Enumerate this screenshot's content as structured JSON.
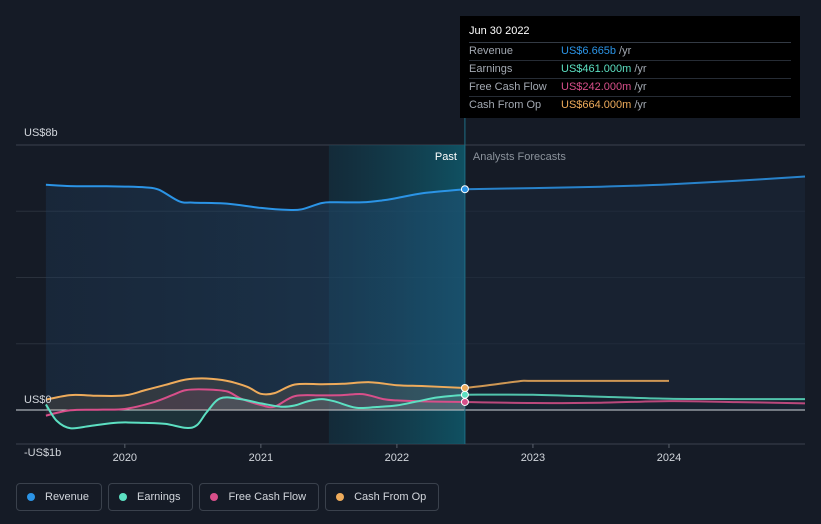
{
  "chart_data": {
    "type": "line",
    "title": "",
    "xlabel": "",
    "ylabel": "",
    "ylim": [
      -1000,
      8000
    ],
    "y_tick_labels": [
      "US$8b",
      "US$0",
      "-US$1b"
    ],
    "x_tick_labels": [
      "2020",
      "2021",
      "2022",
      "2023",
      "2024"
    ],
    "x_range": [
      2019.2,
      2025.0
    ],
    "region_labels": {
      "past": "Past",
      "forecast": "Analysts Forecasts"
    },
    "past_end": 2022.5,
    "highlight_start": 2021.5,
    "grid": true,
    "legend_position": "bottom",
    "series": [
      {
        "name": "Revenue",
        "color": "#2b94e6",
        "points": [
          [
            2019.42,
            6800
          ],
          [
            2019.6,
            6760
          ],
          [
            2019.8,
            6755
          ],
          [
            2020.0,
            6745
          ],
          [
            2020.15,
            6720
          ],
          [
            2020.25,
            6650
          ],
          [
            2020.4,
            6300
          ],
          [
            2020.5,
            6260
          ],
          [
            2020.75,
            6230
          ],
          [
            2021.0,
            6100
          ],
          [
            2021.2,
            6040
          ],
          [
            2021.3,
            6060
          ],
          [
            2021.45,
            6250
          ],
          [
            2021.55,
            6270
          ],
          [
            2021.75,
            6270
          ],
          [
            2021.9,
            6330
          ],
          [
            2022.0,
            6400
          ],
          [
            2022.2,
            6550
          ],
          [
            2022.5,
            6665
          ],
          [
            2023.0,
            6700
          ],
          [
            2023.5,
            6740
          ],
          [
            2024.0,
            6810
          ],
          [
            2024.5,
            6920
          ],
          [
            2025.0,
            7050
          ]
        ]
      },
      {
        "name": "Earnings",
        "color": "#5ce0c2",
        "points": [
          [
            2019.42,
            170
          ],
          [
            2019.5,
            -330
          ],
          [
            2019.6,
            -550
          ],
          [
            2019.75,
            -480
          ],
          [
            2019.95,
            -380
          ],
          [
            2020.15,
            -390
          ],
          [
            2020.3,
            -420
          ],
          [
            2020.45,
            -540
          ],
          [
            2020.53,
            -460
          ],
          [
            2020.6,
            -80
          ],
          [
            2020.7,
            350
          ],
          [
            2020.85,
            330
          ],
          [
            2021.0,
            200
          ],
          [
            2021.15,
            100
          ],
          [
            2021.25,
            140
          ],
          [
            2021.35,
            270
          ],
          [
            2021.45,
            330
          ],
          [
            2021.55,
            250
          ],
          [
            2021.7,
            70
          ],
          [
            2021.85,
            90
          ],
          [
            2022.0,
            140
          ],
          [
            2022.15,
            260
          ],
          [
            2022.3,
            380
          ],
          [
            2022.5,
            461
          ],
          [
            2023.0,
            461
          ],
          [
            2023.5,
            400
          ],
          [
            2024.0,
            340
          ],
          [
            2024.5,
            330
          ],
          [
            2025.0,
            330
          ]
        ]
      },
      {
        "name": "Free Cash Flow",
        "color": "#d84f8a",
        "points": [
          [
            2019.42,
            -170
          ],
          [
            2019.6,
            -10
          ],
          [
            2019.8,
            10
          ],
          [
            2020.0,
            30
          ],
          [
            2020.2,
            220
          ],
          [
            2020.35,
            450
          ],
          [
            2020.45,
            600
          ],
          [
            2020.6,
            620
          ],
          [
            2020.75,
            560
          ],
          [
            2020.85,
            350
          ],
          [
            2021.0,
            150
          ],
          [
            2021.1,
            100
          ],
          [
            2021.25,
            420
          ],
          [
            2021.45,
            440
          ],
          [
            2021.6,
            450
          ],
          [
            2021.75,
            480
          ],
          [
            2021.9,
            330
          ],
          [
            2022.0,
            290
          ],
          [
            2022.2,
            260
          ],
          [
            2022.5,
            242
          ],
          [
            2023.0,
            210
          ],
          [
            2023.5,
            220
          ],
          [
            2024.0,
            270
          ],
          [
            2024.5,
            240
          ],
          [
            2025.0,
            200
          ]
        ]
      },
      {
        "name": "Cash From Op",
        "color": "#eeab5b",
        "points": [
          [
            2019.42,
            310
          ],
          [
            2019.6,
            450
          ],
          [
            2019.8,
            430
          ],
          [
            2020.0,
            440
          ],
          [
            2020.15,
            600
          ],
          [
            2020.3,
            760
          ],
          [
            2020.45,
            920
          ],
          [
            2020.6,
            950
          ],
          [
            2020.75,
            880
          ],
          [
            2020.9,
            700
          ],
          [
            2021.0,
            490
          ],
          [
            2021.1,
            510
          ],
          [
            2021.25,
            770
          ],
          [
            2021.45,
            780
          ],
          [
            2021.6,
            790
          ],
          [
            2021.8,
            840
          ],
          [
            2022.0,
            750
          ],
          [
            2022.2,
            720
          ],
          [
            2022.5,
            664
          ],
          [
            2022.7,
            760
          ],
          [
            2022.9,
            870
          ],
          [
            2023.0,
            880
          ],
          [
            2023.5,
            880
          ],
          [
            2024.0,
            880
          ]
        ]
      }
    ]
  },
  "tooltip": {
    "date": "Jun 30 2022",
    "rows": [
      {
        "label": "Revenue",
        "value": "US$6.665b",
        "unit": "/yr",
        "color": "#2b94e6"
      },
      {
        "label": "Earnings",
        "value": "US$461.000m",
        "unit": "/yr",
        "color": "#5ce0c2"
      },
      {
        "label": "Free Cash Flow",
        "value": "US$242.000m",
        "unit": "/yr",
        "color": "#d84f8a"
      },
      {
        "label": "Cash From Op",
        "value": "US$664.000m",
        "unit": "/yr",
        "color": "#eeab5b"
      }
    ]
  },
  "legend": [
    {
      "label": "Revenue",
      "color": "#2b94e6"
    },
    {
      "label": "Earnings",
      "color": "#5ce0c2"
    },
    {
      "label": "Free Cash Flow",
      "color": "#d84f8a"
    },
    {
      "label": "Cash From Op",
      "color": "#eeab5b"
    }
  ]
}
